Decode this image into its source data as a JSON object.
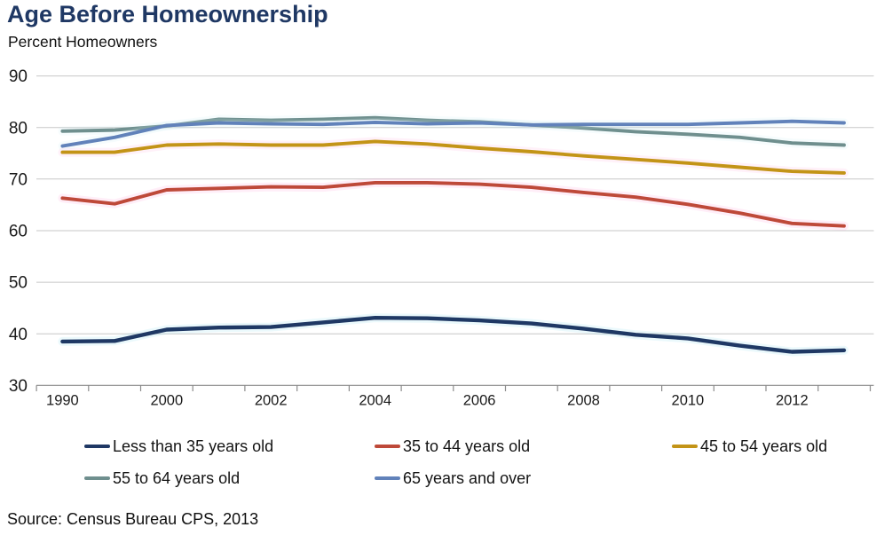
{
  "header": {
    "title": "Age Before Homeownership",
    "subtitle": "Percent Homeowners"
  },
  "source": {
    "text": "Source: Census Bureau CPS, 2013"
  },
  "chart_data": {
    "type": "line",
    "title": "Age Before Homeownership",
    "ylabel": "Percent Homeowners",
    "ylim": [
      30,
      90
    ],
    "y_ticks": [
      90,
      80,
      70,
      60,
      50,
      40,
      30
    ],
    "grid": "horizontal",
    "gridline_color": "#c7c7c7",
    "axis_color": "#8c8c8c",
    "label_color": "#1a1a1a",
    "legend_position": "bottom",
    "categories": [
      "1990",
      "1995",
      "2000",
      "2001",
      "2002",
      "2003",
      "2004",
      "2005",
      "2006",
      "2007",
      "2008",
      "2009",
      "2010",
      "2011",
      "2012",
      "2013"
    ],
    "x_tick_labels_shown": [
      "1990",
      "2000",
      "2002",
      "2004",
      "2006",
      "2008",
      "2010",
      "2012"
    ],
    "x_label_category_indices": [
      0,
      2,
      4,
      6,
      8,
      10,
      12,
      14
    ],
    "series": [
      {
        "name": "Less than 35 years old",
        "color": "#1f3864",
        "values": [
          38.5,
          38.6,
          40.8,
          41.2,
          41.3,
          42.2,
          43.1,
          43.0,
          42.6,
          42.0,
          41.0,
          39.8,
          39.1,
          37.7,
          36.5,
          36.8
        ]
      },
      {
        "name": "35 to 44 years old",
        "color": "#be4939",
        "values": [
          66.3,
          65.2,
          67.9,
          68.2,
          68.5,
          68.4,
          69.3,
          69.3,
          69.0,
          68.4,
          67.4,
          66.5,
          65.1,
          63.4,
          61.4,
          60.9
        ]
      },
      {
        "name": "45 to 54 years old",
        "color": "#c39417",
        "values": [
          75.2,
          75.2,
          76.6,
          76.8,
          76.6,
          76.6,
          77.3,
          76.8,
          76.0,
          75.3,
          74.5,
          73.8,
          73.1,
          72.3,
          71.5,
          71.2
        ]
      },
      {
        "name": "55 to 64 years old",
        "color": "#6f8f8e",
        "values": [
          79.3,
          79.5,
          80.3,
          81.6,
          81.4,
          81.6,
          81.9,
          81.4,
          81.1,
          80.5,
          79.9,
          79.2,
          78.7,
          78.1,
          77.0,
          76.6
        ]
      },
      {
        "name": "65 years and over",
        "color": "#6182ba",
        "values": [
          76.4,
          78.1,
          80.4,
          80.9,
          80.7,
          80.6,
          81.0,
          80.7,
          80.9,
          80.5,
          80.6,
          80.6,
          80.6,
          80.9,
          81.2,
          80.9
        ]
      }
    ]
  }
}
